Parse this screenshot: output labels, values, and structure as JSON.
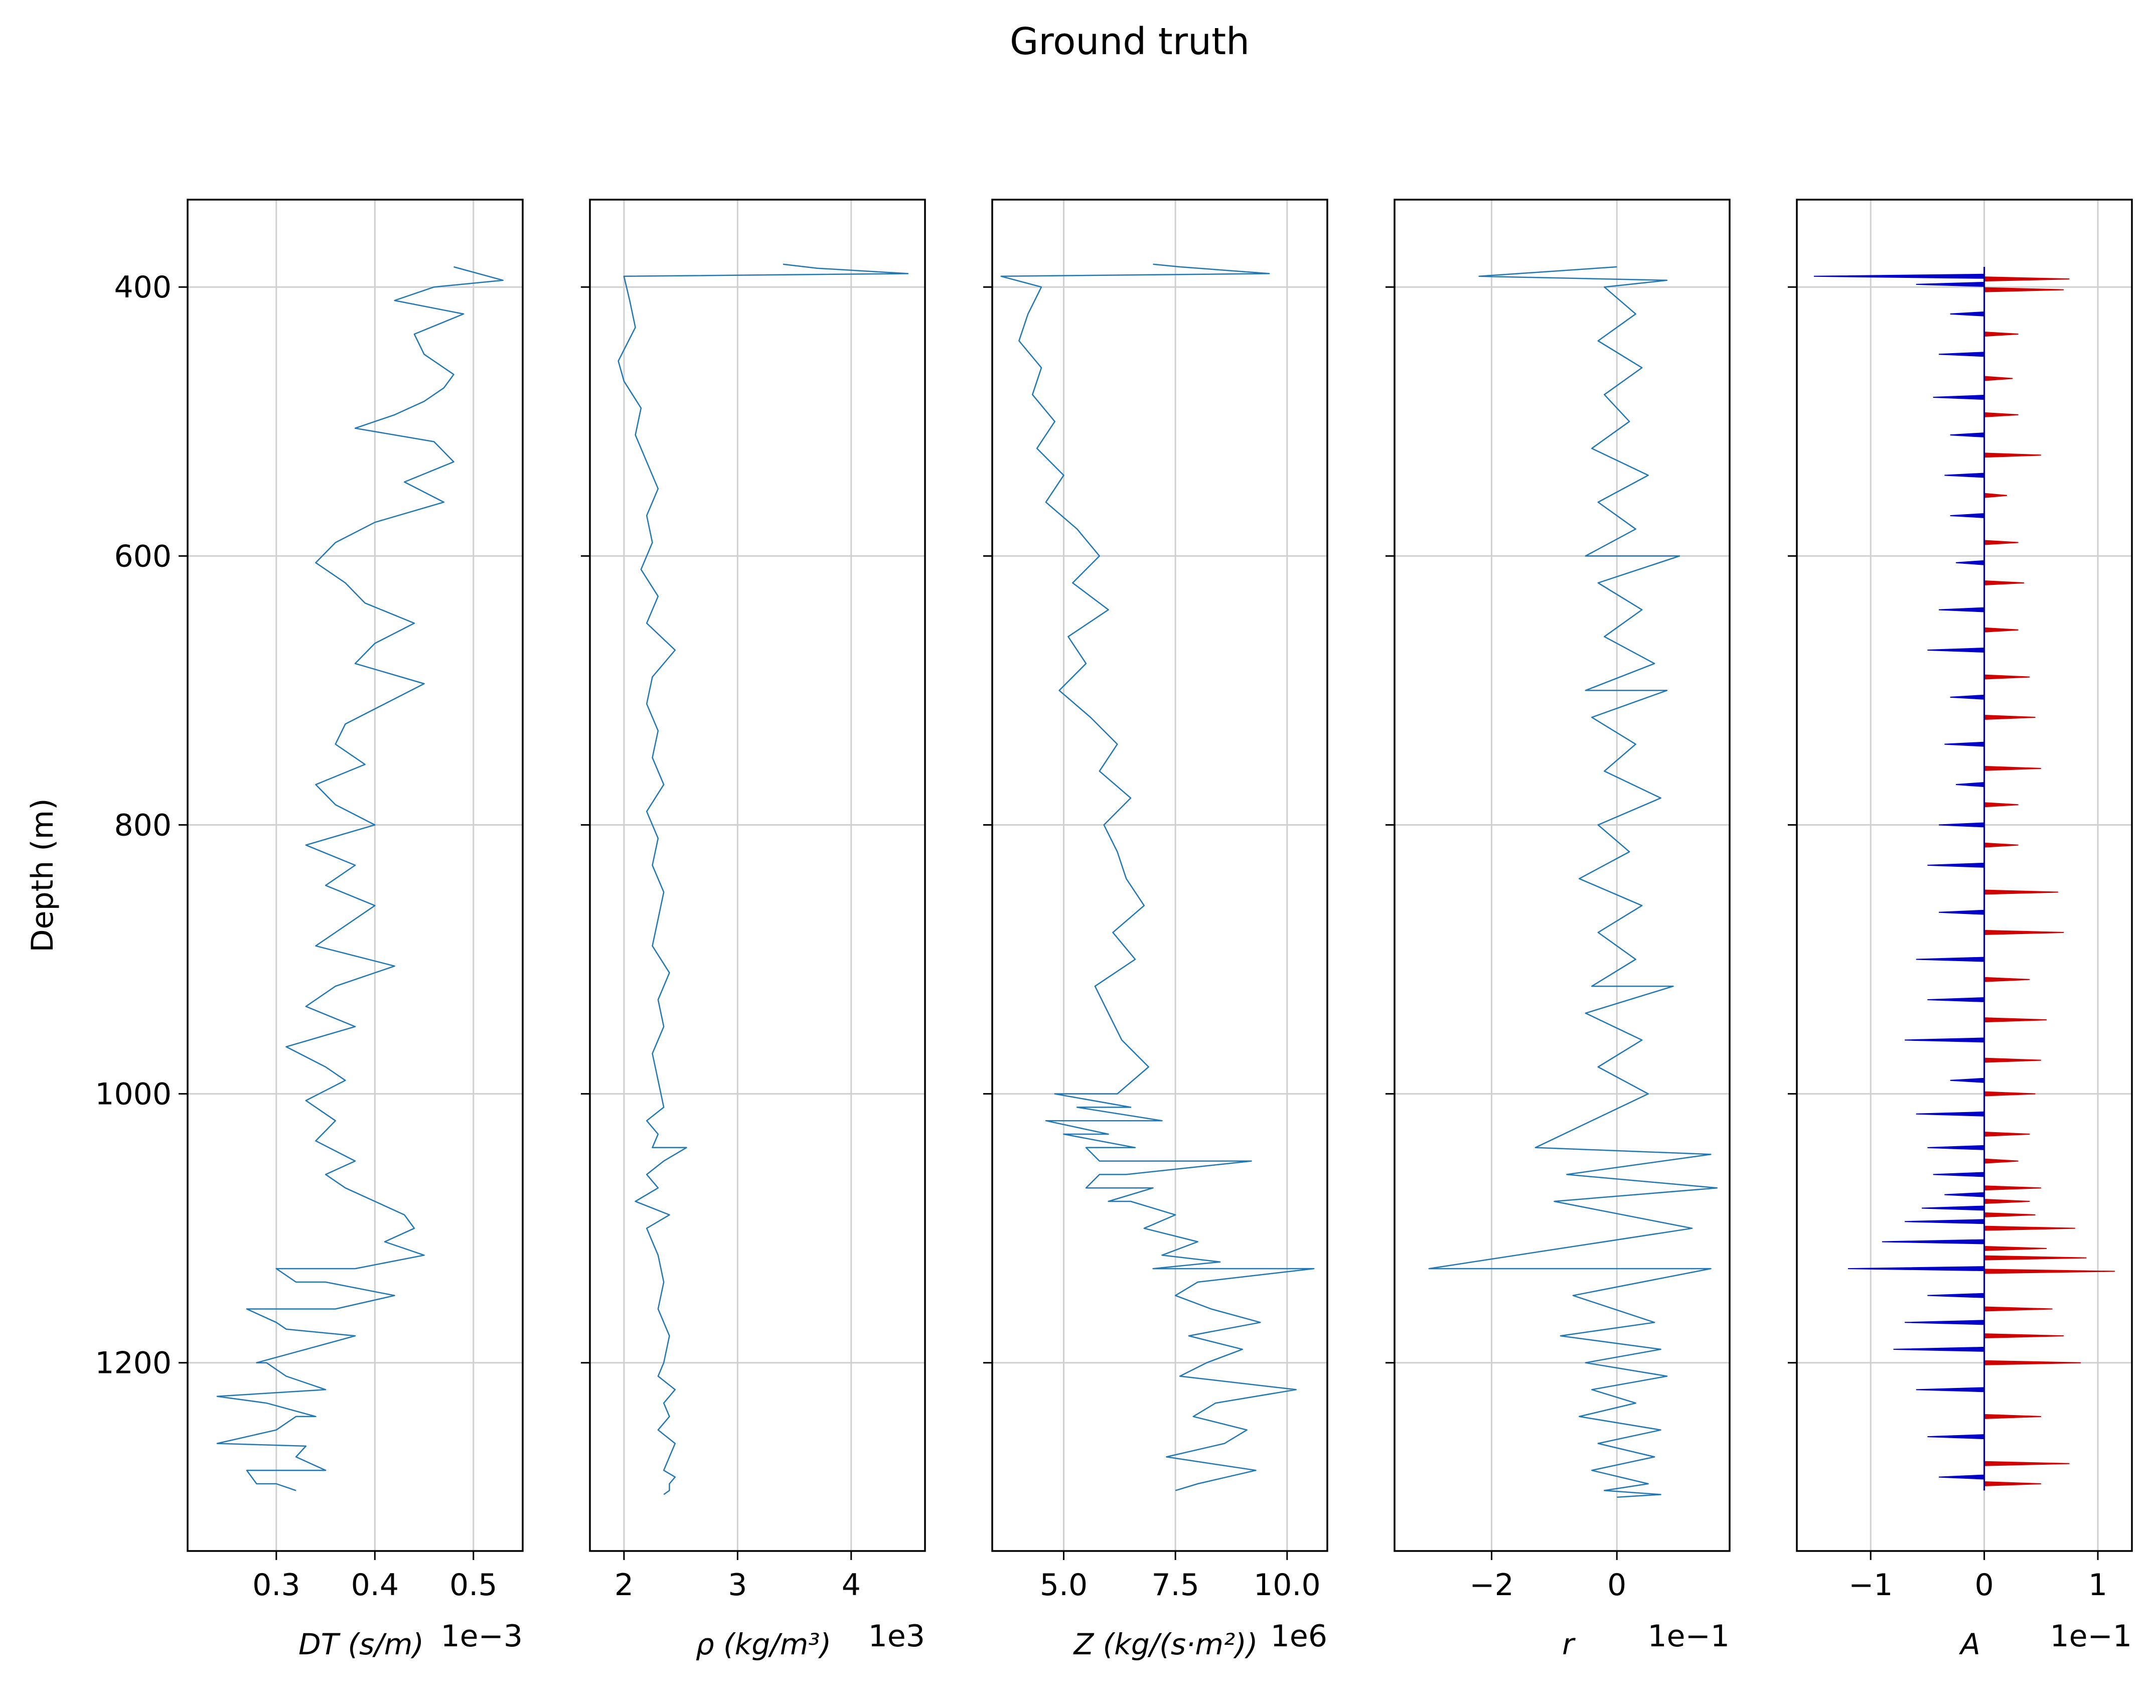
{
  "figure": {
    "title": "Ground truth",
    "ylabel": "Depth (m)"
  },
  "chart_data": [
    {
      "type": "line",
      "xlabel": "DT (s/m)",
      "multiplier": "1e−3",
      "xlim": [
        0.21,
        0.55
      ],
      "xticks": [
        0.3,
        0.4,
        0.5
      ],
      "xtick_labels": [
        "0.3",
        "0.4",
        "0.5"
      ],
      "ylim": [
        1340,
        335
      ],
      "yticks": [
        400,
        600,
        800,
        1000,
        1200
      ],
      "ytick_labels": [
        "400",
        "600",
        "800",
        "1000",
        "1200"
      ],
      "grid": true,
      "color": "#1f77b4",
      "series": [
        {
          "x": [
            0.48,
            0.53,
            0.46,
            0.42,
            0.49,
            0.44,
            0.45,
            0.48,
            0.47,
            0.45,
            0.42,
            0.38,
            0.46,
            0.48,
            0.43,
            0.47,
            0.4,
            0.36,
            0.34,
            0.37,
            0.39,
            0.44,
            0.4,
            0.38,
            0.45,
            0.41,
            0.37,
            0.36,
            0.39,
            0.34,
            0.36,
            0.4,
            0.33,
            0.38,
            0.35,
            0.4,
            0.37,
            0.34,
            0.42,
            0.36,
            0.33,
            0.38,
            0.31,
            0.35,
            0.37,
            0.33,
            0.36,
            0.34,
            0.38,
            0.35,
            0.37,
            0.4,
            0.43,
            0.44,
            0.41,
            0.45,
            0.38,
            0.32,
            0.42,
            0.36,
            0.3,
            0.38,
            0.33,
            0.28,
            0.31,
            0.35,
            0.29,
            0.34,
            0.3,
            0.24,
            0.32,
            0.35,
            0.28,
            0.32,
            0.3,
            0.35,
            0.27,
            0.31,
            0.29,
            0.24,
            0.32,
            0.33,
            0.27,
            0.3
          ],
          "y": [
            385,
            395,
            400,
            410,
            420,
            435,
            450,
            465,
            475,
            485,
            495,
            505,
            515,
            530,
            545,
            560,
            575,
            590,
            605,
            620,
            635,
            650,
            665,
            680,
            695,
            710,
            725,
            740,
            755,
            770,
            785,
            800,
            815,
            830,
            845,
            860,
            875,
            890,
            905,
            920,
            935,
            950,
            965,
            980,
            990,
            1005,
            1020,
            1035,
            1050,
            1060,
            1070,
            1080,
            1090,
            1100,
            1110,
            1120,
            1130,
            1140,
            1150,
            1160,
            1170,
            1180,
            1190,
            1200,
            1210,
            1220,
            1230,
            1240,
            1250,
            1260,
            1270,
            1280,
            1290,
            1295,
            1130,
            1140,
            1160,
            1175,
            1200,
            1225,
            1240,
            1262,
            1280,
            1290
          ]
        }
      ]
    },
    {
      "type": "line",
      "xlabel": "ρ (kg/m³)",
      "multiplier": "1e3",
      "xlim": [
        1.7,
        4.65
      ],
      "xticks": [
        2,
        3,
        4
      ],
      "xtick_labels": [
        "2",
        "3",
        "4"
      ],
      "ylim": [
        1340,
        335
      ],
      "grid": true,
      "color": "#1f77b4",
      "series": [
        {
          "x": [
            3.4,
            3.7,
            4.5,
            2.0,
            2.05,
            2.1,
            1.95,
            2.0,
            2.15,
            2.1,
            2.2,
            2.3,
            2.2,
            2.25,
            2.15,
            2.3,
            2.2,
            2.45,
            2.25,
            2.2,
            2.3,
            2.25,
            2.35,
            2.2,
            2.3,
            2.25,
            2.35,
            2.3,
            2.25,
            2.4,
            2.3,
            2.35,
            2.25,
            2.3,
            2.35,
            2.2,
            2.3,
            2.25,
            2.35,
            2.2,
            2.3,
            2.1,
            2.4,
            2.2,
            2.55,
            2.25,
            2.3,
            2.35,
            2.3,
            2.4,
            2.35,
            2.3,
            2.45,
            2.35,
            2.4,
            2.3,
            2.45,
            2.4,
            2.35,
            2.45,
            2.4,
            2.4,
            2.35
          ],
          "y": [
            383,
            386,
            390,
            392,
            410,
            430,
            455,
            470,
            490,
            510,
            530,
            550,
            570,
            590,
            610,
            630,
            650,
            670,
            690,
            710,
            730,
            750,
            770,
            790,
            810,
            830,
            850,
            870,
            890,
            910,
            930,
            950,
            970,
            990,
            1010,
            1020,
            1030,
            1040,
            1050,
            1060,
            1070,
            1080,
            1090,
            1100,
            1040,
            1110,
            1120,
            1140,
            1160,
            1180,
            1200,
            1210,
            1220,
            1230,
            1240,
            1250,
            1260,
            1270,
            1280,
            1285,
            1290,
            1295,
            1298
          ]
        }
      ]
    },
    {
      "type": "line",
      "xlabel": "Z (kg/(s·m²))",
      "multiplier": "1e6",
      "xlim": [
        3.4,
        10.9
      ],
      "xticks": [
        5.0,
        7.5,
        10.0
      ],
      "xtick_labels": [
        "5.0",
        "7.5",
        "10.0"
      ],
      "ylim": [
        1340,
        335
      ],
      "grid": true,
      "color": "#1f77b4",
      "series": [
        {
          "x": [
            7.0,
            7.6,
            9.6,
            3.6,
            4.5,
            4.2,
            4.0,
            4.5,
            4.3,
            4.8,
            4.4,
            5.0,
            4.6,
            5.3,
            5.8,
            5.2,
            6.0,
            5.1,
            5.5,
            4.9,
            5.6,
            6.2,
            5.8,
            6.5,
            5.9,
            6.2,
            6.4,
            6.8,
            6.1,
            6.6,
            5.7,
            6.0,
            6.3,
            6.9,
            6.2,
            6.5,
            7.2,
            6.0,
            6.6,
            5.8,
            6.4,
            5.5,
            6.0,
            4.8,
            5.3,
            4.6,
            5.0,
            5.5,
            6.2,
            5.8,
            7.0,
            6.5,
            7.5,
            9.2,
            6.8,
            8.0,
            7.2,
            8.5,
            7.0,
            10.6,
            8.0,
            7.5,
            8.3,
            9.4,
            7.8,
            9.0,
            8.2,
            7.6,
            10.2,
            8.4,
            7.9,
            9.1,
            8.6,
            7.3,
            9.3,
            8.0,
            7.5
          ],
          "y": [
            383,
            385,
            390,
            392,
            400,
            420,
            440,
            460,
            480,
            500,
            520,
            540,
            560,
            580,
            600,
            620,
            640,
            660,
            680,
            700,
            720,
            740,
            760,
            780,
            800,
            820,
            840,
            860,
            880,
            900,
            920,
            940,
            960,
            980,
            1000,
            1010,
            1020,
            1030,
            1040,
            1050,
            1060,
            1070,
            1080,
            1000,
            1010,
            1020,
            1030,
            1040,
            1050,
            1060,
            1070,
            1080,
            1090,
            1050,
            1100,
            1110,
            1120,
            1125,
            1130,
            1130,
            1140,
            1150,
            1160,
            1170,
            1180,
            1190,
            1200,
            1210,
            1220,
            1230,
            1240,
            1250,
            1260,
            1270,
            1280,
            1290,
            1295
          ]
        }
      ]
    },
    {
      "type": "line",
      "xlabel": "r",
      "multiplier": "1e−1",
      "xlim": [
        -3.55,
        1.8
      ],
      "xticks": [
        -2,
        0
      ],
      "xtick_labels": [
        "−2",
        "0"
      ],
      "ylim": [
        1340,
        335
      ],
      "grid": true,
      "color": "#1f77b4",
      "series": [
        {
          "x": [
            0,
            -2.2,
            0.8,
            -0.2,
            0.3,
            -0.3,
            0.4,
            -0.2,
            0.2,
            -0.4,
            0.5,
            -0.3,
            0.3,
            -0.5,
            1.0,
            -0.3,
            0.4,
            -0.2,
            0.6,
            -0.5,
            0.8,
            -0.4,
            0.3,
            -0.2,
            0.7,
            -0.3,
            0.2,
            -0.6,
            0.4,
            -0.3,
            0.3,
            -0.4,
            0.9,
            -0.5,
            0.4,
            -0.3,
            0.5,
            -1.3,
            1.5,
            -0.8,
            1.6,
            -1.0,
            1.2,
            -3.0,
            1.5,
            -0.7,
            0.6,
            -0.9,
            0.7,
            -0.5,
            0.8,
            -0.4,
            0.3,
            -0.6,
            0.7,
            -0.3,
            0.6,
            -0.4,
            0.5,
            -0.2,
            0.7,
            0
          ],
          "y": [
            385,
            392,
            395,
            400,
            420,
            440,
            460,
            480,
            500,
            520,
            540,
            560,
            580,
            600,
            600,
            620,
            640,
            660,
            680,
            700,
            700,
            720,
            740,
            760,
            780,
            800,
            820,
            840,
            860,
            880,
            900,
            920,
            920,
            940,
            960,
            980,
            1000,
            1040,
            1045,
            1060,
            1070,
            1080,
            1100,
            1130,
            1130,
            1150,
            1170,
            1180,
            1190,
            1200,
            1210,
            1220,
            1230,
            1240,
            1250,
            1260,
            1270,
            1280,
            1290,
            1295,
            1298,
            1300
          ]
        }
      ]
    },
    {
      "type": "area",
      "xlabel": "A",
      "multiplier": "1e−1",
      "xlim": [
        -1.65,
        1.3
      ],
      "xticks": [
        -1,
        0,
        1
      ],
      "xtick_labels": [
        "−1",
        "0",
        "1"
      ],
      "ylim": [
        1340,
        335
      ],
      "grid": true,
      "positive_color": "#d00000",
      "negative_color": "#0000c8",
      "series": [
        {
          "x": [
            -1.5,
            0.75,
            -0.6,
            0.7,
            -0.3,
            0.3,
            -0.4,
            0.25,
            -0.45,
            0.3,
            -0.3,
            0.5,
            -0.35,
            0.2,
            -0.3,
            0.3,
            -0.25,
            0.35,
            -0.4,
            0.3,
            -0.5,
            0.4,
            -0.3,
            0.45,
            -0.35,
            0.5,
            -0.25,
            0.3,
            -0.4,
            0.3,
            -0.5,
            0.65,
            -0.4,
            0.7,
            -0.6,
            0.4,
            -0.5,
            0.55,
            -0.7,
            0.5,
            -0.3,
            0.45,
            -0.6,
            0.4,
            -0.5,
            0.3,
            -0.45,
            0.5,
            -0.35,
            0.4,
            -0.55,
            0.45,
            -0.7,
            0.8,
            -0.6,
            0.55,
            -0.9,
            0.9,
            -1.2,
            1.15,
            -0.5,
            0.6,
            -0.7,
            0.7,
            -0.8,
            0.85,
            -0.6,
            0.5,
            -0.5,
            0.75,
            -0.4,
            0.5
          ],
          "y": [
            392,
            394,
            398,
            402,
            420,
            435,
            450,
            468,
            482,
            495,
            510,
            525,
            540,
            555,
            570,
            590,
            605,
            620,
            640,
            655,
            670,
            690,
            705,
            720,
            740,
            758,
            770,
            785,
            800,
            815,
            830,
            850,
            865,
            880,
            900,
            915,
            930,
            945,
            960,
            975,
            990,
            1000,
            1015,
            1030,
            1040,
            1050,
            1060,
            1070,
            1075,
            1080,
            1085,
            1090,
            1095,
            1100,
            1110,
            1115,
            1110,
            1122,
            1130,
            1132,
            1150,
            1160,
            1170,
            1180,
            1190,
            1200,
            1220,
            1240,
            1255,
            1275,
            1285,
            1290
          ]
        }
      ]
    }
  ]
}
